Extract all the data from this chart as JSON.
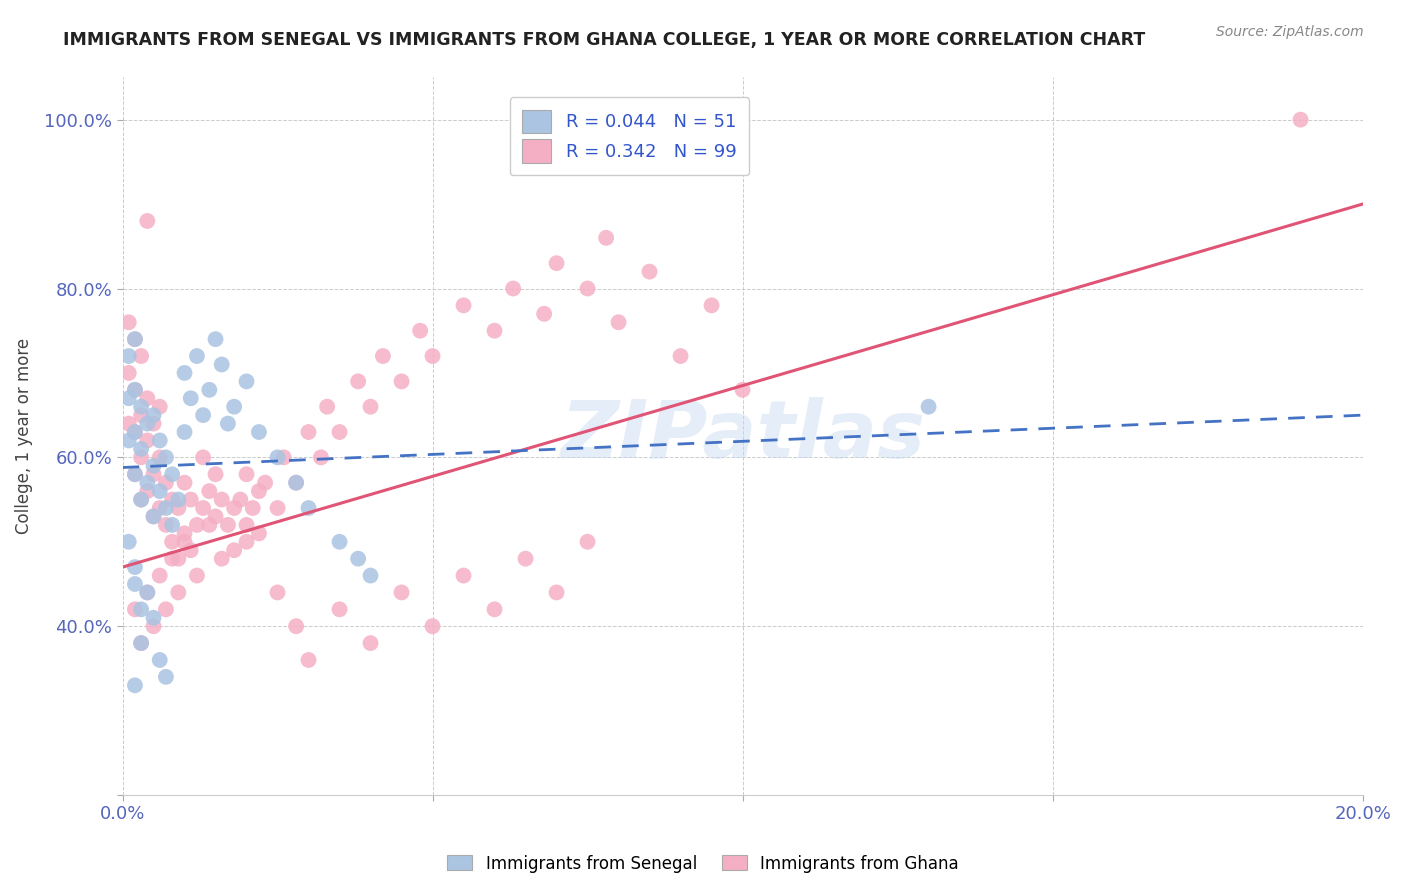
{
  "title": "IMMIGRANTS FROM SENEGAL VS IMMIGRANTS FROM GHANA COLLEGE, 1 YEAR OR MORE CORRELATION CHART",
  "source": "Source: ZipAtlas.com",
  "ylabel": "College, 1 year or more",
  "xlim": [
    0.0,
    0.2
  ],
  "ylim": [
    0.2,
    1.05
  ],
  "x_tick_vals": [
    0.0,
    0.05,
    0.1,
    0.15,
    0.2
  ],
  "x_tick_labels": [
    "0.0%",
    "",
    "",
    "",
    "20.0%"
  ],
  "y_tick_vals": [
    0.2,
    0.4,
    0.6,
    0.8,
    1.0
  ],
  "y_tick_labels": [
    "",
    "40.0%",
    "60.0%",
    "80.0%",
    "100.0%"
  ],
  "senegal_R": 0.044,
  "senegal_N": 51,
  "ghana_R": 0.342,
  "ghana_N": 99,
  "senegal_color": "#aac4e2",
  "ghana_color": "#f5afc5",
  "senegal_line_color": "#4472c4",
  "ghana_line_color": "#e05575",
  "background_color": "#ffffff",
  "grid_color": "#cccccc",
  "watermark": "ZIPatlas",
  "senegal_x": [
    0.001,
    0.001,
    0.001,
    0.002,
    0.002,
    0.002,
    0.002,
    0.003,
    0.003,
    0.003,
    0.004,
    0.004,
    0.005,
    0.005,
    0.005,
    0.006,
    0.006,
    0.007,
    0.007,
    0.008,
    0.008,
    0.009,
    0.01,
    0.01,
    0.011,
    0.012,
    0.013,
    0.014,
    0.015,
    0.016,
    0.017,
    0.018,
    0.02,
    0.022,
    0.025,
    0.028,
    0.03,
    0.035,
    0.038,
    0.04,
    0.002,
    0.003,
    0.001,
    0.002,
    0.004,
    0.005,
    0.003,
    0.006,
    0.007,
    0.002,
    0.13
  ],
  "senegal_y": [
    0.62,
    0.67,
    0.72,
    0.58,
    0.63,
    0.68,
    0.74,
    0.55,
    0.61,
    0.66,
    0.57,
    0.64,
    0.53,
    0.59,
    0.65,
    0.56,
    0.62,
    0.54,
    0.6,
    0.52,
    0.58,
    0.55,
    0.63,
    0.7,
    0.67,
    0.72,
    0.65,
    0.68,
    0.74,
    0.71,
    0.64,
    0.66,
    0.69,
    0.63,
    0.6,
    0.57,
    0.54,
    0.5,
    0.48,
    0.46,
    0.45,
    0.42,
    0.5,
    0.47,
    0.44,
    0.41,
    0.38,
    0.36,
    0.34,
    0.33,
    0.66
  ],
  "ghana_x": [
    0.001,
    0.001,
    0.001,
    0.002,
    0.002,
    0.002,
    0.002,
    0.003,
    0.003,
    0.003,
    0.003,
    0.004,
    0.004,
    0.004,
    0.005,
    0.005,
    0.005,
    0.006,
    0.006,
    0.006,
    0.007,
    0.007,
    0.008,
    0.008,
    0.009,
    0.009,
    0.01,
    0.01,
    0.011,
    0.011,
    0.012,
    0.013,
    0.013,
    0.014,
    0.015,
    0.015,
    0.016,
    0.017,
    0.018,
    0.019,
    0.02,
    0.02,
    0.021,
    0.022,
    0.023,
    0.025,
    0.026,
    0.028,
    0.03,
    0.032,
    0.033,
    0.035,
    0.038,
    0.04,
    0.042,
    0.045,
    0.048,
    0.05,
    0.055,
    0.06,
    0.063,
    0.068,
    0.07,
    0.075,
    0.078,
    0.08,
    0.085,
    0.09,
    0.095,
    0.1,
    0.002,
    0.003,
    0.004,
    0.005,
    0.006,
    0.007,
    0.008,
    0.009,
    0.01,
    0.012,
    0.014,
    0.016,
    0.018,
    0.02,
    0.022,
    0.025,
    0.028,
    0.03,
    0.035,
    0.04,
    0.045,
    0.05,
    0.055,
    0.06,
    0.065,
    0.07,
    0.075,
    0.004,
    0.19
  ],
  "ghana_y": [
    0.64,
    0.7,
    0.76,
    0.58,
    0.63,
    0.68,
    0.74,
    0.55,
    0.6,
    0.65,
    0.72,
    0.56,
    0.62,
    0.67,
    0.53,
    0.58,
    0.64,
    0.54,
    0.6,
    0.66,
    0.52,
    0.57,
    0.5,
    0.55,
    0.48,
    0.54,
    0.51,
    0.57,
    0.49,
    0.55,
    0.52,
    0.54,
    0.6,
    0.56,
    0.53,
    0.58,
    0.55,
    0.52,
    0.49,
    0.55,
    0.52,
    0.58,
    0.54,
    0.51,
    0.57,
    0.54,
    0.6,
    0.57,
    0.63,
    0.6,
    0.66,
    0.63,
    0.69,
    0.66,
    0.72,
    0.69,
    0.75,
    0.72,
    0.78,
    0.75,
    0.8,
    0.77,
    0.83,
    0.8,
    0.86,
    0.76,
    0.82,
    0.72,
    0.78,
    0.68,
    0.42,
    0.38,
    0.44,
    0.4,
    0.46,
    0.42,
    0.48,
    0.44,
    0.5,
    0.46,
    0.52,
    0.48,
    0.54,
    0.5,
    0.56,
    0.44,
    0.4,
    0.36,
    0.42,
    0.38,
    0.44,
    0.4,
    0.46,
    0.42,
    0.48,
    0.44,
    0.5,
    0.88,
    1.0
  ]
}
